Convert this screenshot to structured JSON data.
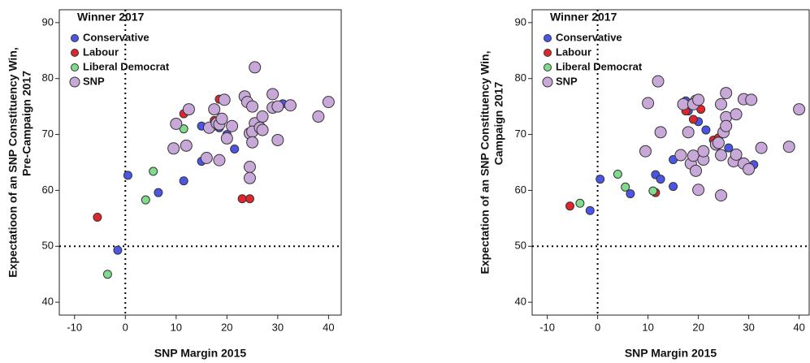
{
  "chart_data": [
    {
      "type": "scatter",
      "xlabel": "SNP Margin 2015",
      "ylabel": [
        "Expectatioon of an SNP Constituency Win,",
        "Pre-Campaign 2017"
      ],
      "legend_title": "Winner 2017",
      "legend": "top-left",
      "xlim": [
        -13,
        42.5
      ],
      "ylim": [
        37.7,
        92.3
      ],
      "xticks": [
        -10,
        0,
        10,
        20,
        30,
        40
      ],
      "yticks": [
        40,
        50,
        60,
        70,
        80,
        90
      ],
      "reflines": {
        "x": 0,
        "y": 50
      },
      "series": [
        {
          "name": "Conservative",
          "color": "#4b55e8",
          "x": [
            0.5,
            6.5,
            11.5,
            -1.5,
            15,
            15,
            17.5,
            18.5,
            21.5,
            20,
            31
          ],
          "values": [
            62.7,
            59.6,
            61.7,
            49.3,
            71.5,
            65.2,
            71.5,
            71.2,
            67.4,
            70,
            75.5
          ]
        },
        {
          "name": "Labour",
          "color": "#e0262b",
          "x": [
            -5.5,
            23,
            24.5,
            11.5,
            18.5,
            19,
            17.5
          ],
          "values": [
            55.2,
            58.5,
            58.5,
            73.7,
            76.3,
            72.5,
            72.5
          ]
        },
        {
          "name": "Liberal Democrat",
          "color": "#7fdc8a",
          "x": [
            -3.5,
            4,
            5.5,
            11.5
          ],
          "values": [
            45,
            58.3,
            63.4,
            71
          ]
        },
        {
          "name": "SNP",
          "color": "#c8a8d8",
          "x": [
            10,
            9.5,
            12,
            12.5,
            16.5,
            17.5,
            18,
            18.5,
            19,
            19.5,
            18.5,
            16,
            20,
            21,
            23.5,
            24,
            24.5,
            24.5,
            24.5,
            25,
            25.5,
            25,
            25,
            25.5,
            26.5,
            27,
            27,
            29,
            29,
            30,
            30,
            32.5,
            38,
            40
          ],
          "values": [
            71.9,
            67.5,
            68,
            74.5,
            71.2,
            74.5,
            72,
            71.8,
            72.8,
            76.2,
            65.4,
            65.8,
            69.3,
            71.5,
            76.8,
            75.8,
            70.2,
            64.2,
            62.2,
            75,
            72,
            70.5,
            68.6,
            82,
            71.2,
            73.2,
            70.8,
            77.2,
            74.8,
            75,
            69,
            75.2,
            73.2,
            75.8
          ]
        }
      ]
    },
    {
      "type": "scatter",
      "xlabel": "SNP Margin 2015",
      "ylabel": [
        "Expectation of an SNP Constituency Win,",
        "Campaign 2017"
      ],
      "legend_title": "Winner 2017",
      "legend": "top-left",
      "xlim": [
        -13,
        42
      ],
      "ylim": [
        37.7,
        92.3
      ],
      "xticks": [
        -10,
        0,
        10,
        20,
        30,
        40
      ],
      "yticks": [
        40,
        50,
        60,
        70,
        80,
        90
      ],
      "reflines": {
        "x": 0,
        "y": 50
      },
      "series": [
        {
          "name": "Conservative",
          "color": "#4b55e8",
          "x": [
            0.5,
            6.5,
            -1.5,
            11.5,
            12.5,
            15,
            15,
            17.5,
            18,
            20,
            21.5,
            26,
            31
          ],
          "values": [
            62,
            59.4,
            56.4,
            62.8,
            62,
            60.7,
            65.5,
            76,
            74.2,
            72.3,
            70.8,
            67.6,
            64.6
          ]
        },
        {
          "name": "Labour",
          "color": "#e0262b",
          "x": [
            -5.5,
            11.5,
            17.5,
            19,
            20.5,
            23,
            24
          ],
          "values": [
            57.2,
            59.6,
            74.2,
            72.7,
            74.5,
            69,
            69.4
          ]
        },
        {
          "name": "Liberal Democrat",
          "color": "#7fdc8a",
          "x": [
            -3.5,
            4,
            5.5,
            11
          ],
          "values": [
            57.7,
            62.9,
            60.6,
            59.9
          ]
        },
        {
          "name": "SNP",
          "color": "#c8a8d8",
          "x": [
            10,
            9.5,
            12,
            12.5,
            16.5,
            17,
            18,
            18.5,
            19,
            19.5,
            19,
            20,
            19.5,
            20,
            21,
            21,
            23.5,
            24,
            24.5,
            24.5,
            24.5,
            25,
            25.5,
            25.5,
            25.5,
            27,
            27.5,
            27.5,
            29,
            29,
            30,
            30.5,
            32.5,
            38,
            40
          ],
          "values": [
            75.6,
            67,
            79.5,
            70.4,
            66.3,
            75.4,
            70.4,
            64.8,
            66.2,
            76,
            75.4,
            76.2,
            63.5,
            60.1,
            65.5,
            67,
            68.2,
            68.5,
            75.4,
            66.3,
            59.1,
            70.4,
            73.1,
            71.5,
            77.4,
            65.2,
            66.4,
            73.6,
            76.3,
            64.8,
            63.8,
            76.2,
            67.6,
            67.8,
            74.5
          ]
        }
      ]
    }
  ]
}
